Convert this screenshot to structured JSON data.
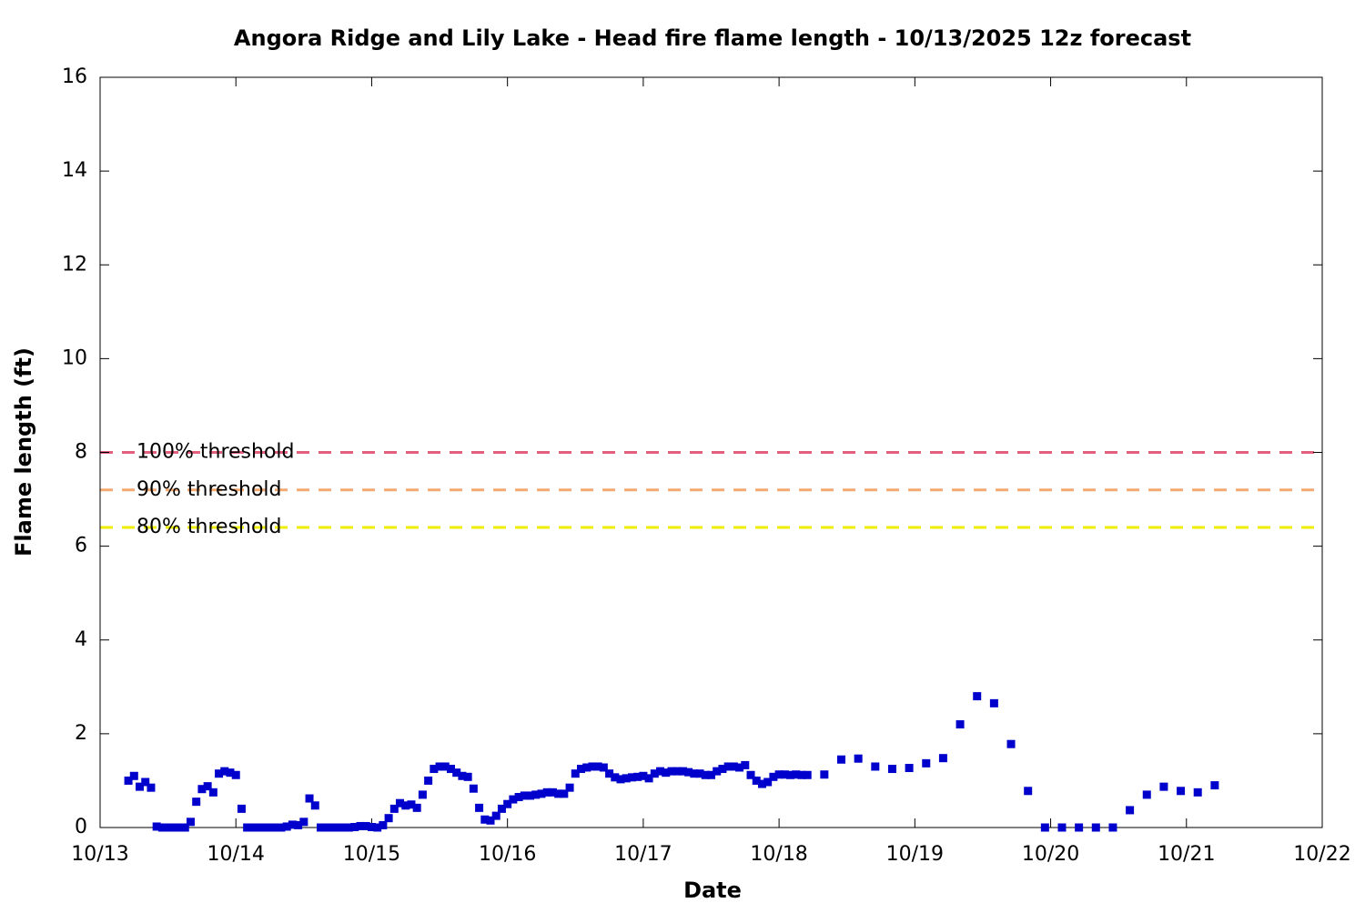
{
  "chart_data": {
    "type": "scatter",
    "title": "Angora Ridge and Lily Lake - Head fire flame length - 10/13/2025 12z forecast",
    "x_label": "Date",
    "y_label": "Flame length (ft)",
    "xlim": [
      0,
      216
    ],
    "ylim": [
      0,
      16
    ],
    "xticks": [
      {
        "value": 0,
        "label": "10/13"
      },
      {
        "value": 24,
        "label": "10/14"
      },
      {
        "value": 48,
        "label": "10/15"
      },
      {
        "value": 72,
        "label": "10/16"
      },
      {
        "value": 96,
        "label": "10/17"
      },
      {
        "value": 120,
        "label": "10/18"
      },
      {
        "value": 144,
        "label": "10/19"
      },
      {
        "value": 168,
        "label": "10/20"
      },
      {
        "value": 192,
        "label": "10/21"
      },
      {
        "value": 216,
        "label": "10/22"
      }
    ],
    "yticks": [
      0,
      2,
      4,
      6,
      8,
      10,
      12,
      14,
      16
    ],
    "thresholds": [
      {
        "label": "100% threshold",
        "value": 8,
        "color": "#e0607e"
      },
      {
        "label": "90% threshold",
        "value": 7.2,
        "color": "#f4a970"
      },
      {
        "label": "80% threshold",
        "value": 6.4,
        "color": "#eeee00"
      }
    ],
    "series": [
      {
        "color": "#0000cc",
        "x": [
          5,
          6,
          7,
          8,
          9,
          10,
          11,
          12,
          13,
          14,
          15,
          16,
          17,
          18,
          19,
          20,
          21,
          22,
          23,
          24,
          25,
          26,
          27,
          28,
          29,
          30,
          31,
          32,
          33,
          34,
          35,
          36,
          37,
          38,
          39,
          40,
          41,
          42,
          43,
          44,
          45,
          46,
          47,
          48,
          49,
          50,
          51,
          52,
          53,
          54,
          55,
          56,
          57,
          58,
          59,
          60,
          61,
          62,
          63,
          64,
          65,
          66,
          67,
          68,
          69,
          70,
          71,
          72,
          73,
          74,
          75,
          76,
          77,
          78,
          79,
          80,
          81,
          82,
          83,
          84,
          85,
          86,
          87,
          88,
          89,
          90,
          91,
          92,
          93,
          94,
          95,
          96,
          97,
          98,
          99,
          100,
          101,
          102,
          103,
          104,
          105,
          106,
          107,
          108,
          109,
          110,
          111,
          112,
          113,
          114,
          115,
          116,
          117,
          118,
          119,
          120,
          121,
          122,
          123,
          124,
          125,
          128,
          131,
          134,
          137,
          140,
          143,
          146,
          149,
          152,
          155,
          158,
          161,
          164,
          167,
          170,
          173,
          176,
          179,
          182,
          185,
          188,
          191,
          194,
          197
        ],
        "values": [
          1.0,
          1.1,
          0.87,
          0.97,
          0.85,
          0.02,
          0,
          0,
          0,
          0,
          0,
          0.12,
          0.55,
          0.82,
          0.88,
          0.75,
          1.15,
          1.2,
          1.17,
          1.12,
          0.4,
          0,
          0,
          0,
          0,
          0,
          0,
          0,
          0.02,
          0.06,
          0.05,
          0.12,
          0.62,
          0.47,
          0,
          0,
          0,
          0,
          0,
          0,
          0.01,
          0.03,
          0.03,
          0.01,
          0,
          0.05,
          0.2,
          0.4,
          0.52,
          0.47,
          0.49,
          0.42,
          0.7,
          1.0,
          1.25,
          1.3,
          1.3,
          1.25,
          1.17,
          1.1,
          1.08,
          0.83,
          0.42,
          0.17,
          0.15,
          0.25,
          0.4,
          0.5,
          0.6,
          0.65,
          0.68,
          0.68,
          0.7,
          0.72,
          0.75,
          0.75,
          0.72,
          0.72,
          0.85,
          1.15,
          1.25,
          1.28,
          1.3,
          1.3,
          1.28,
          1.15,
          1.07,
          1.03,
          1.05,
          1.07,
          1.08,
          1.1,
          1.05,
          1.15,
          1.2,
          1.17,
          1.2,
          1.2,
          1.2,
          1.18,
          1.15,
          1.15,
          1.12,
          1.12,
          1.2,
          1.25,
          1.3,
          1.3,
          1.28,
          1.33,
          1.12,
          1.0,
          0.93,
          0.97,
          1.08,
          1.13,
          1.13,
          1.12,
          1.13,
          1.12,
          1.12,
          1.13,
          1.45,
          1.47,
          1.3,
          1.25,
          1.27,
          1.37,
          1.48,
          2.2,
          2.8,
          2.65,
          1.78,
          0.78,
          0,
          0,
          0,
          0,
          0,
          0.37,
          0.7,
          0.87,
          0.78,
          0.75,
          0.9
        ]
      }
    ]
  }
}
